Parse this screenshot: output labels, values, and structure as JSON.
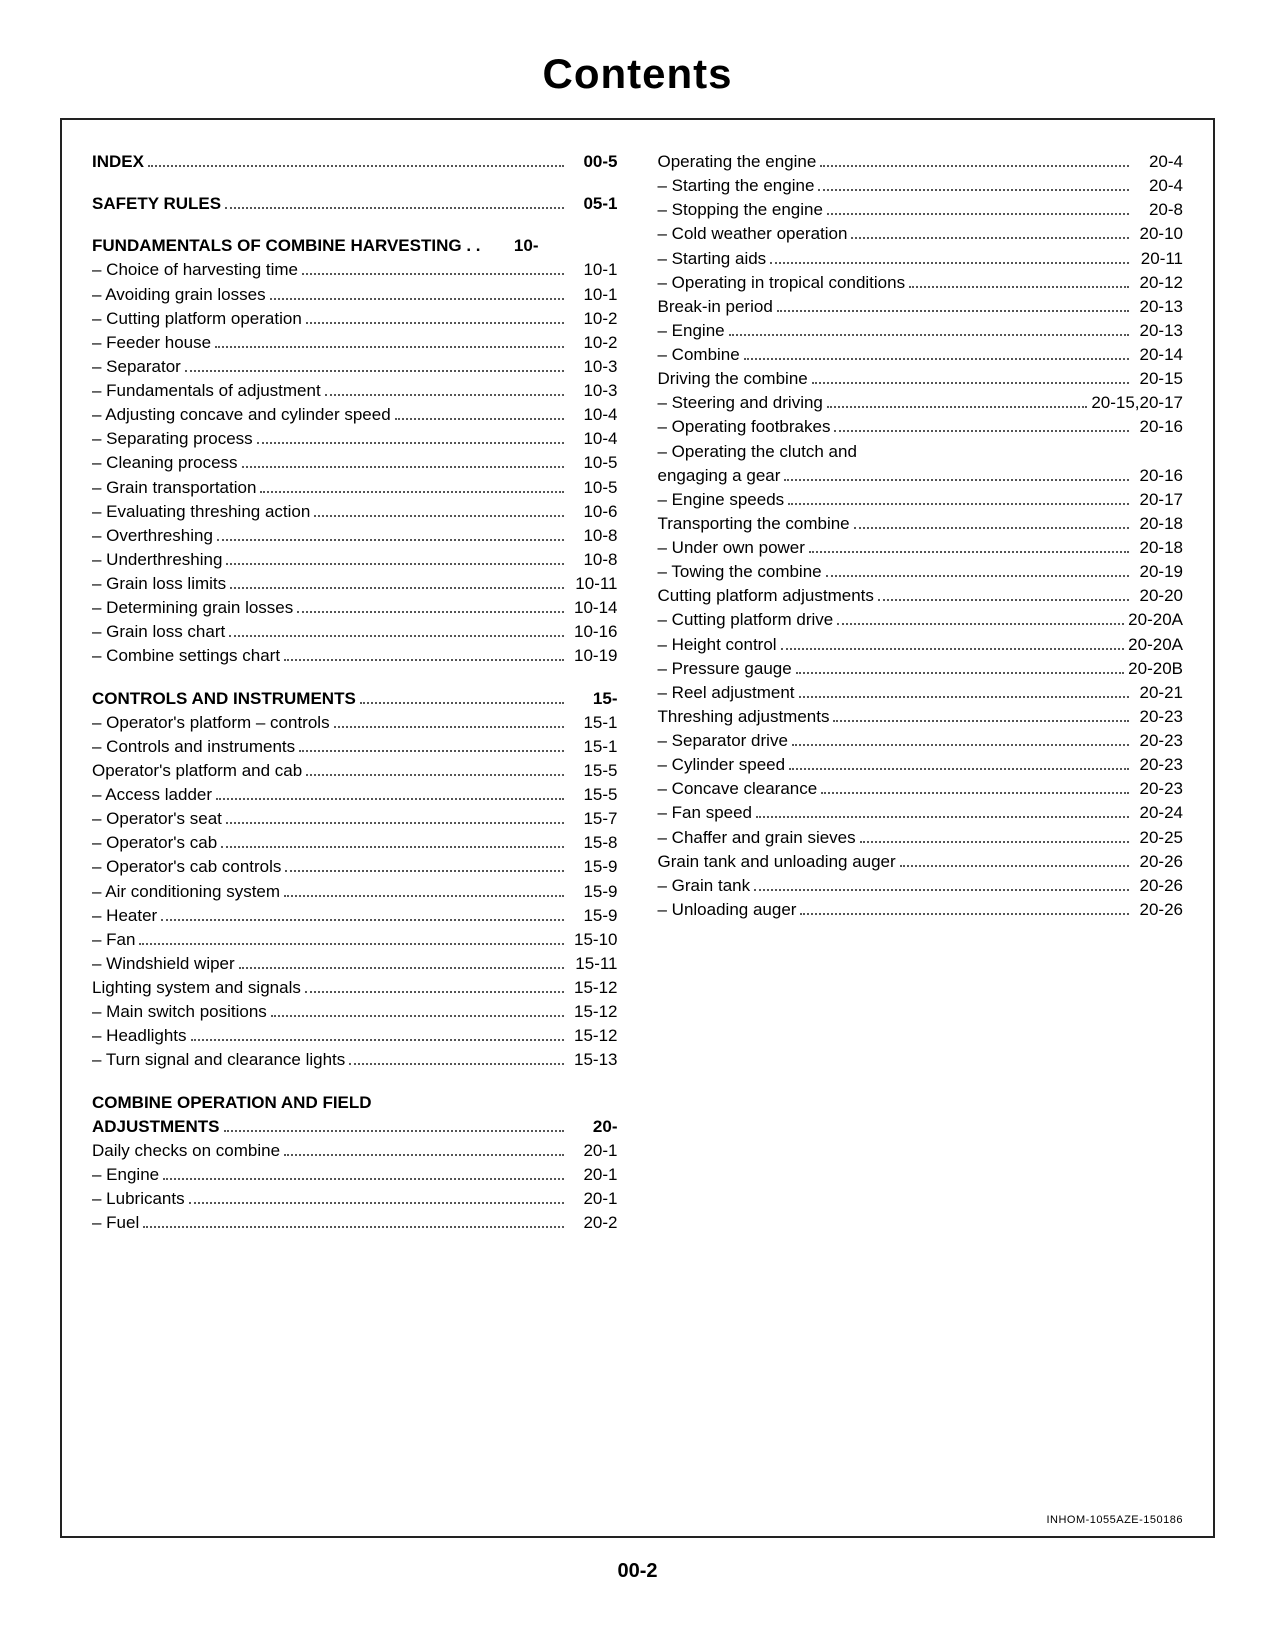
{
  "title": "Contents",
  "page_number": "00-2",
  "doc_ref": "INHOM-1055AZE-150186",
  "left": [
    {
      "label": "INDEX",
      "page": "00-5",
      "bold": true
    },
    {
      "spacer": true
    },
    {
      "label": "SAFETY RULES",
      "page": "05-1",
      "bold": true
    },
    {
      "spacer": true
    },
    {
      "label": "FUNDAMENTALS OF COMBINE HARVESTING . .",
      "page": "10-",
      "bold": true,
      "nodots": true
    },
    {
      "label": "– Choice of harvesting time",
      "page": "10-1"
    },
    {
      "label": "– Avoiding grain losses",
      "page": "10-1"
    },
    {
      "label": "– Cutting platform operation",
      "page": "10-2"
    },
    {
      "label": "– Feeder house",
      "page": "10-2"
    },
    {
      "label": "– Separator",
      "page": "10-3"
    },
    {
      "label": "– Fundamentals of adjustment",
      "page": "10-3"
    },
    {
      "label": "– Adjusting concave and cylinder speed",
      "page": "10-4"
    },
    {
      "label": "– Separating process",
      "page": "10-4"
    },
    {
      "label": "– Cleaning process",
      "page": "10-5"
    },
    {
      "label": "– Grain transportation",
      "page": "10-5"
    },
    {
      "label": "– Evaluating threshing action",
      "page": "10-6"
    },
    {
      "label": "– Overthreshing",
      "page": "10-8"
    },
    {
      "label": "– Underthreshing",
      "page": "10-8"
    },
    {
      "label": "– Grain loss limits",
      "page": "10-11"
    },
    {
      "label": "– Determining grain losses",
      "page": "10-14"
    },
    {
      "label": "– Grain loss chart",
      "page": "10-16"
    },
    {
      "label": "– Combine settings chart",
      "page": "10-19"
    },
    {
      "spacer": true
    },
    {
      "label": "CONTROLS AND INSTRUMENTS",
      "page": "15-",
      "bold": true
    },
    {
      "label": "– Operator's platform – controls",
      "page": "15-1"
    },
    {
      "label": "– Controls and instruments",
      "page": "15-1"
    },
    {
      "label": "Operator's platform and cab",
      "page": "15-5"
    },
    {
      "label": "– Access ladder",
      "page": "15-5"
    },
    {
      "label": "– Operator's seat",
      "page": "15-7"
    },
    {
      "label": "– Operator's cab",
      "page": "15-8"
    },
    {
      "label": "– Operator's cab controls",
      "page": "15-9"
    },
    {
      "label": "– Air conditioning system",
      "page": "15-9"
    },
    {
      "label": "– Heater",
      "page": "15-9"
    },
    {
      "label": "– Fan",
      "page": "15-10"
    },
    {
      "label": "– Windshield wiper",
      "page": "15-11"
    },
    {
      "label": "Lighting system and signals",
      "page": "15-12"
    },
    {
      "label": "– Main switch positions",
      "page": "15-12"
    },
    {
      "label": "– Headlights",
      "page": "15-12"
    },
    {
      "label": "– Turn signal and clearance lights",
      "page": "15-13"
    },
    {
      "spacer": true
    },
    {
      "label": "COMBINE OPERATION AND FIELD",
      "bold": true,
      "noline": true
    },
    {
      "label": "ADJUSTMENTS",
      "page": "20-",
      "bold": true
    },
    {
      "label": "Daily checks on combine",
      "page": "20-1"
    },
    {
      "label": "– Engine",
      "page": "20-1"
    },
    {
      "label": "– Lubricants",
      "page": "20-1"
    },
    {
      "label": "– Fuel",
      "page": "20-2"
    }
  ],
  "right": [
    {
      "label": "Operating the engine",
      "page": "20-4"
    },
    {
      "label": "– Starting the engine",
      "page": "20-4"
    },
    {
      "label": "– Stopping the engine",
      "page": "20-8"
    },
    {
      "label": "– Cold weather operation",
      "page": "20-10"
    },
    {
      "label": "– Starting aids",
      "page": "20-11"
    },
    {
      "label": "– Operating in tropical conditions",
      "page": "20-12"
    },
    {
      "label": "Break-in period",
      "page": "20-13"
    },
    {
      "label": "– Engine",
      "page": "20-13"
    },
    {
      "label": "– Combine",
      "page": "20-14"
    },
    {
      "label": "Driving the combine",
      "page": "20-15"
    },
    {
      "label": "– Steering and driving",
      "page": "20-15,20-17"
    },
    {
      "label": "– Operating footbrakes",
      "page": "20-16"
    },
    {
      "label": "– Operating the clutch and",
      "noline": true
    },
    {
      "label": "engaging a gear",
      "page": "20-16"
    },
    {
      "label": "– Engine speeds",
      "page": "20-17"
    },
    {
      "label": "Transporting the combine",
      "page": "20-18"
    },
    {
      "label": "– Under own power",
      "page": "20-18"
    },
    {
      "label": "– Towing the combine",
      "page": "20-19"
    },
    {
      "label": "Cutting platform adjustments",
      "page": "20-20"
    },
    {
      "label": "– Cutting platform drive",
      "page": "20-20A"
    },
    {
      "label": "– Height control",
      "page": "20-20A"
    },
    {
      "label": "– Pressure gauge",
      "page": "20-20B"
    },
    {
      "label": "– Reel adjustment",
      "page": "20-21"
    },
    {
      "label": "Threshing adjustments",
      "page": "20-23"
    },
    {
      "label": "– Separator drive",
      "page": "20-23"
    },
    {
      "label": "– Cylinder speed",
      "page": "20-23"
    },
    {
      "label": "– Concave clearance",
      "page": "20-23"
    },
    {
      "label": "– Fan speed",
      "page": "20-24"
    },
    {
      "label": "– Chaffer and grain sieves",
      "page": "20-25"
    },
    {
      "label": "Grain tank and unloading auger",
      "page": "20-26"
    },
    {
      "label": "– Grain tank",
      "page": "20-26"
    },
    {
      "label": "– Unloading auger",
      "page": "20-26"
    }
  ]
}
